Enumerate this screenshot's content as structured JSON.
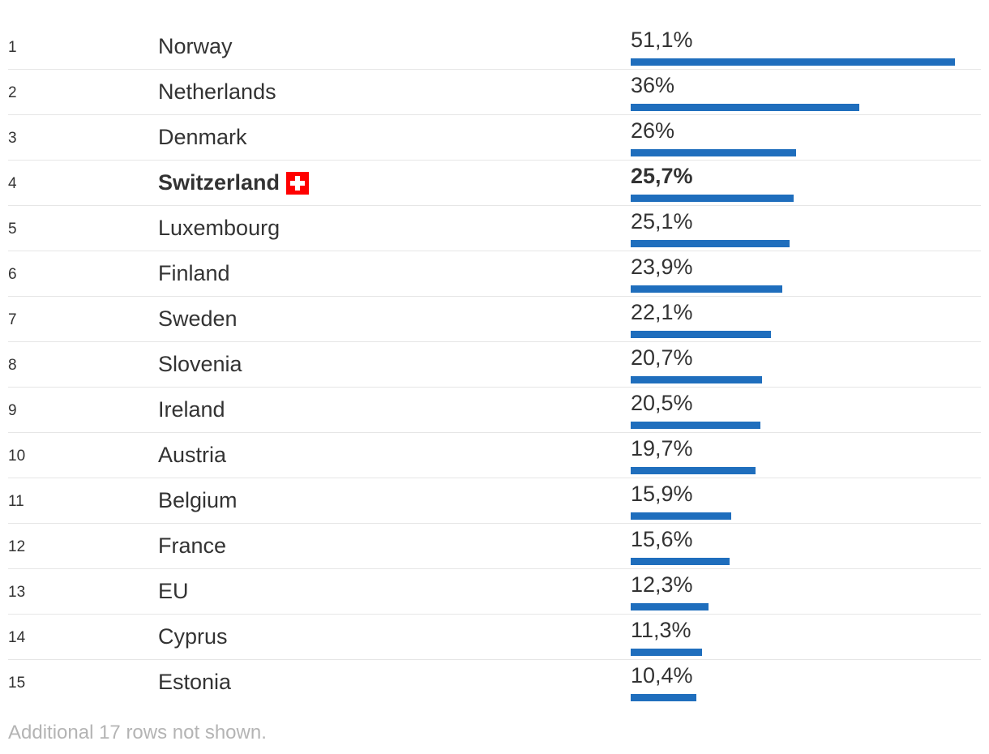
{
  "chart_data": {
    "type": "bar",
    "bar_color": "#1f6ebd",
    "xlim": [
      0,
      51.1
    ],
    "rows": [
      {
        "rank": "1",
        "country": "Norway",
        "value": 51.1,
        "label": "51,1%",
        "highlight": false
      },
      {
        "rank": "2",
        "country": "Netherlands",
        "value": 36,
        "label": "36%",
        "highlight": false
      },
      {
        "rank": "3",
        "country": "Denmark",
        "value": 26,
        "label": "26%",
        "highlight": false
      },
      {
        "rank": "4",
        "country": "Switzerland",
        "value": 25.7,
        "label": "25,7%",
        "highlight": true,
        "icon": "swiss-flag-icon"
      },
      {
        "rank": "5",
        "country": "Luxembourg",
        "value": 25.1,
        "label": "25,1%",
        "highlight": false
      },
      {
        "rank": "6",
        "country": "Finland",
        "value": 23.9,
        "label": "23,9%",
        "highlight": false
      },
      {
        "rank": "7",
        "country": "Sweden",
        "value": 22.1,
        "label": "22,1%",
        "highlight": false
      },
      {
        "rank": "8",
        "country": "Slovenia",
        "value": 20.7,
        "label": "20,7%",
        "highlight": false
      },
      {
        "rank": "9",
        "country": "Ireland",
        "value": 20.5,
        "label": "20,5%",
        "highlight": false
      },
      {
        "rank": "10",
        "country": "Austria",
        "value": 19.7,
        "label": "19,7%",
        "highlight": false
      },
      {
        "rank": "11",
        "country": "Belgium",
        "value": 15.9,
        "label": "15,9%",
        "highlight": false
      },
      {
        "rank": "12",
        "country": "France",
        "value": 15.6,
        "label": "15,6%",
        "highlight": false
      },
      {
        "rank": "13",
        "country": "EU",
        "value": 12.3,
        "label": "12,3%",
        "highlight": false
      },
      {
        "rank": "14",
        "country": "Cyprus",
        "value": 11.3,
        "label": "11,3%",
        "highlight": false
      },
      {
        "rank": "15",
        "country": "Estonia",
        "value": 10.4,
        "label": "10,4%",
        "highlight": false
      }
    ]
  },
  "footnote": "Additional 17 rows not shown."
}
